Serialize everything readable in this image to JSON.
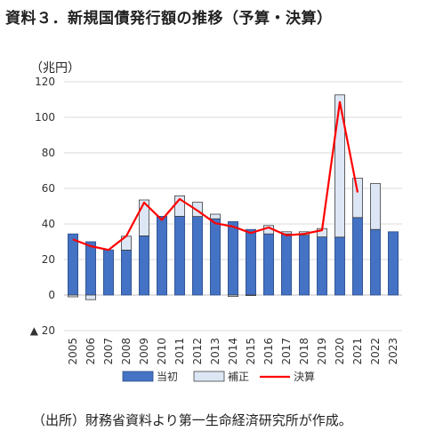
{
  "title": "資料３．新規国債発行額の推移（予算・決算）",
  "unit_label": "（兆円）",
  "source_note": "（出所）財務省資料より第一生命経済研究所が作成。",
  "colors": {
    "initial": "#4472c4",
    "supplementary": "#dde6f4",
    "settlement": "#ff0000",
    "grid": "#d9d9d9"
  },
  "chart_data": {
    "type": "bar",
    "categories": [
      "2005",
      "2006",
      "2007",
      "2008",
      "2009",
      "2010",
      "2011",
      "2012",
      "2013",
      "2014",
      "2015",
      "2016",
      "2017",
      "2018",
      "2019",
      "2020",
      "2021",
      "2022",
      "2023"
    ],
    "ylim": [
      -20,
      120
    ],
    "yticks": [
      -20,
      0,
      20,
      40,
      60,
      80,
      100,
      120
    ],
    "ytick_labels": [
      "▲ 20",
      "0",
      "20",
      "40",
      "60",
      "80",
      "100",
      "120"
    ],
    "grid": true,
    "legend_position": "bottom",
    "series": [
      {
        "name": "当初",
        "kind": "bar-stacked",
        "values": [
          34.4,
          30.0,
          25.4,
          25.3,
          33.3,
          44.3,
          44.3,
          44.2,
          42.9,
          41.3,
          36.9,
          34.4,
          34.4,
          33.7,
          32.7,
          32.6,
          43.6,
          36.9,
          35.6
        ]
      },
      {
        "name": "補正",
        "kind": "bar-stacked",
        "values": [
          -1.0,
          -2.6,
          0.0,
          7.8,
          20.2,
          0.0,
          11.5,
          8.0,
          2.6,
          -0.8,
          -0.3,
          4.7,
          1.2,
          1.9,
          4.7,
          80.0,
          22.1,
          25.8,
          0.0
        ]
      },
      {
        "name": "決算",
        "kind": "line",
        "values": [
          31.3,
          27.5,
          25.4,
          33.2,
          52.0,
          42.3,
          54.0,
          47.5,
          40.4,
          38.5,
          34.9,
          38.0,
          33.6,
          34.4,
          36.5,
          108.6,
          57.7,
          null,
          null
        ]
      }
    ]
  }
}
